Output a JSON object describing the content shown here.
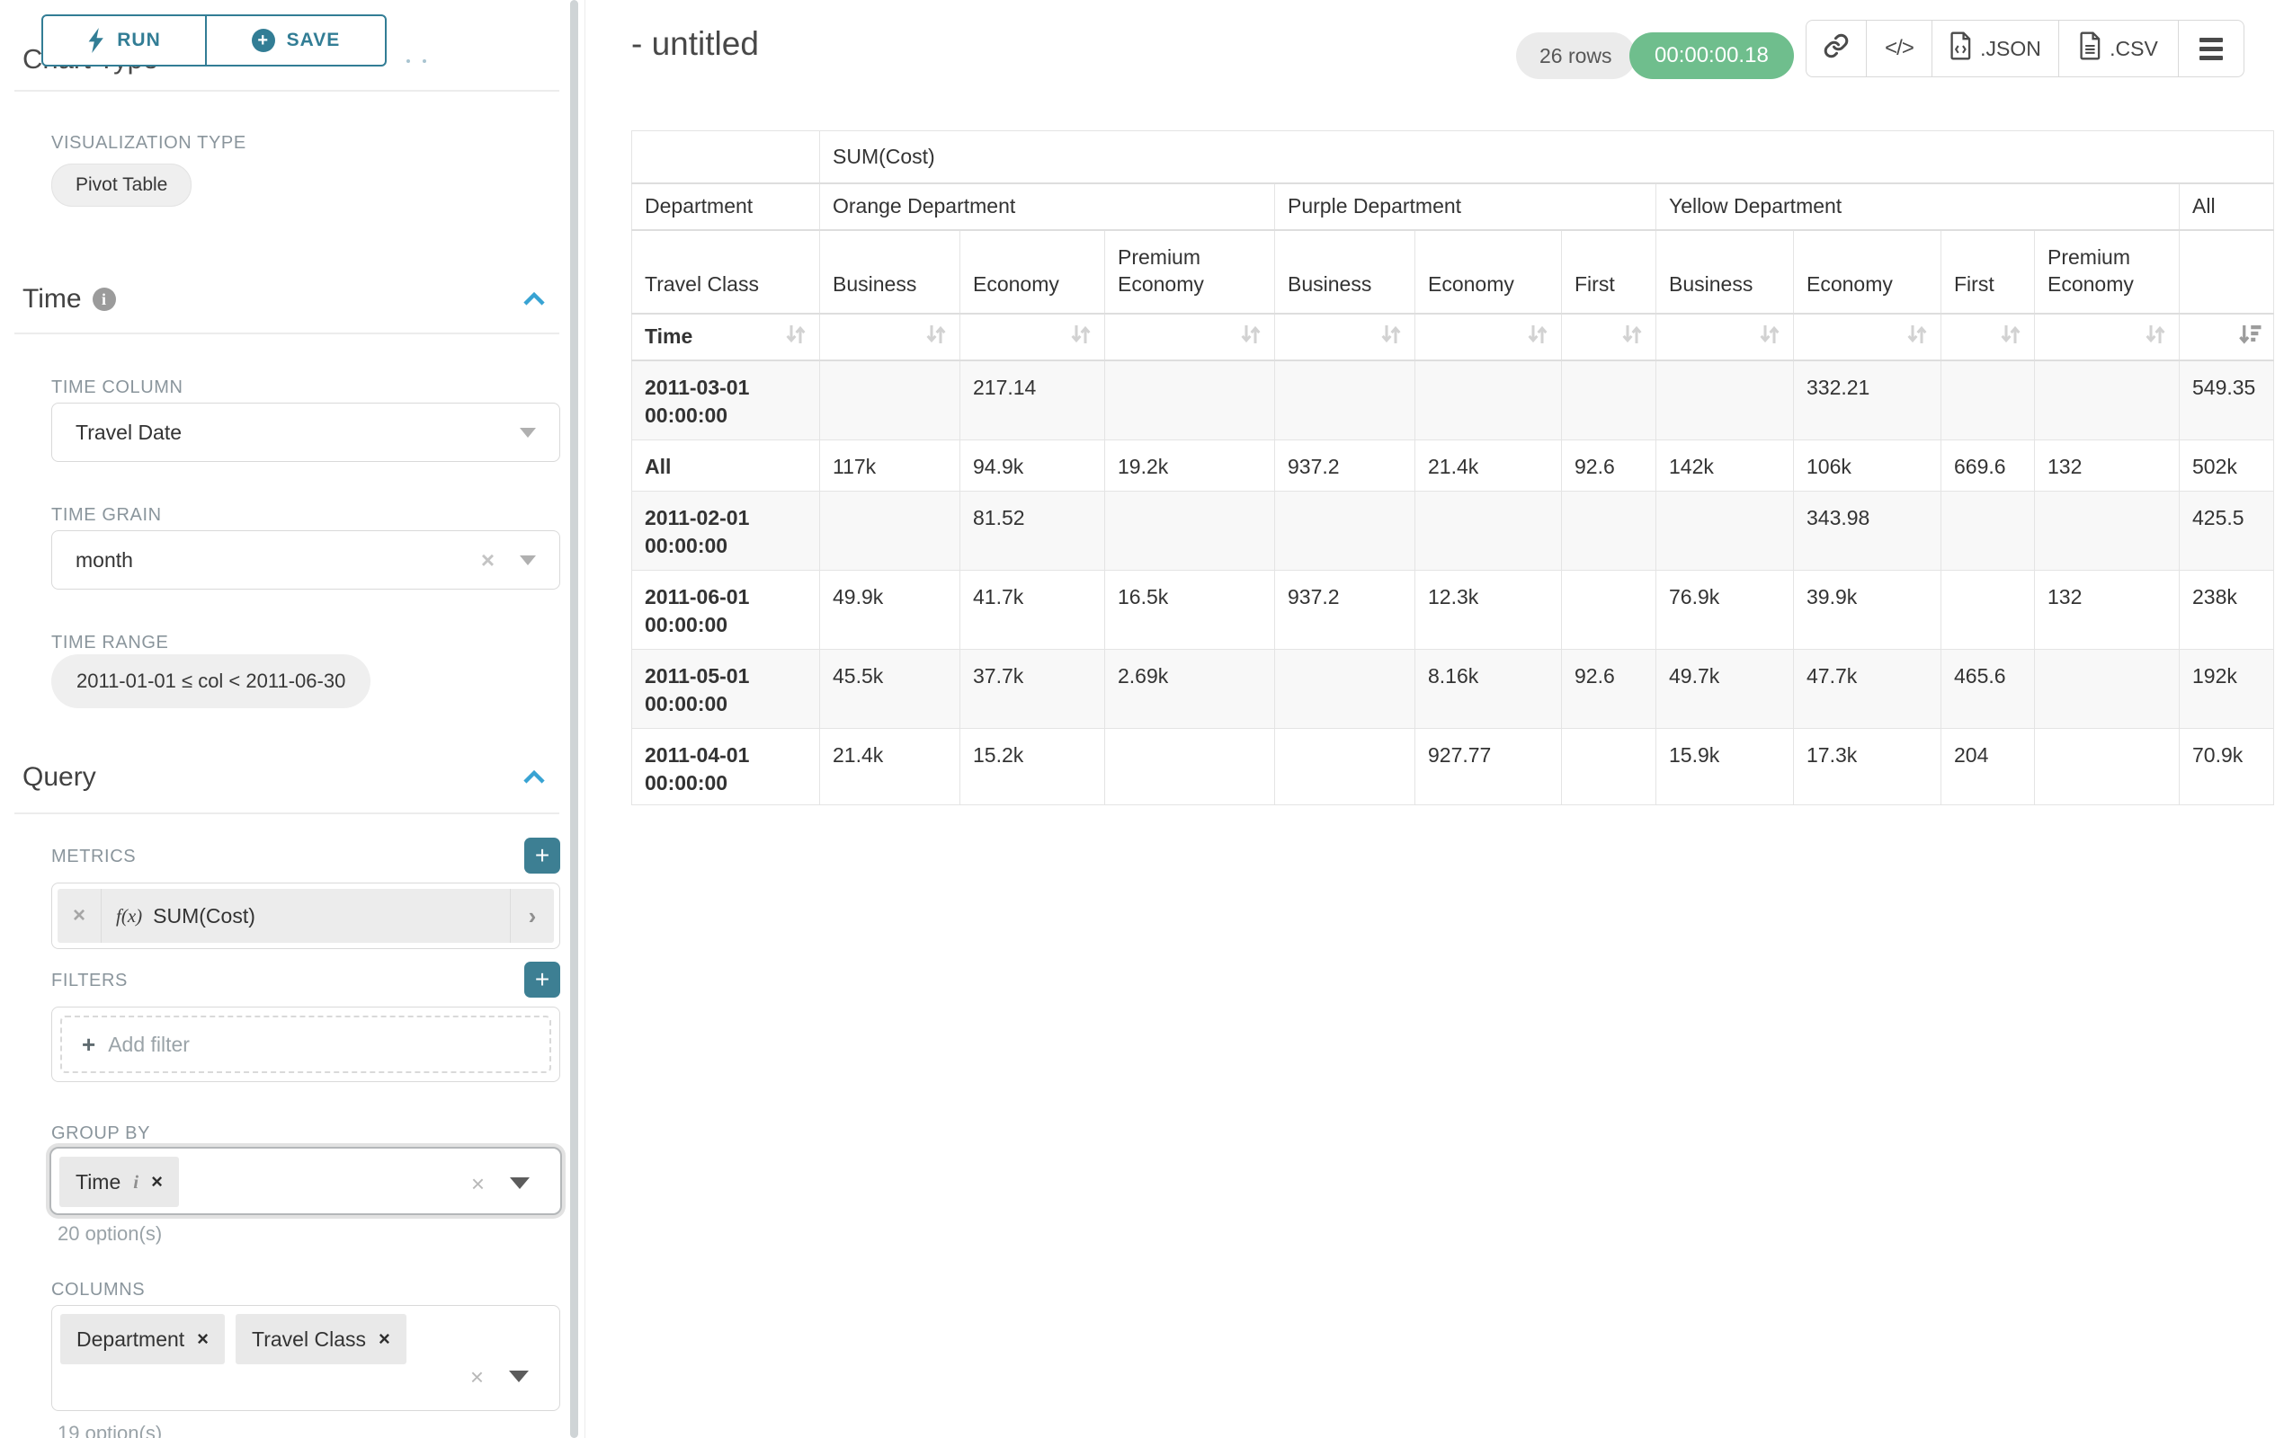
{
  "controls": {
    "run_label": "RUN",
    "save_label": "SAVE",
    "chart_type_heading": "Chart Type",
    "visualization_type_label": "VISUALIZATION TYPE",
    "visualization_type_value": "Pivot Table",
    "time": {
      "title": "Time",
      "time_column_label": "TIME COLUMN",
      "time_column_value": "Travel Date",
      "time_grain_label": "TIME GRAIN",
      "time_grain_value": "month",
      "time_range_label": "TIME RANGE",
      "time_range_value": "2011-01-01 ≤ col < 2011-06-30"
    },
    "query": {
      "title": "Query",
      "metrics_label": "METRICS",
      "metric_fn_icon": "f(x)",
      "metric_value": "SUM(Cost)",
      "filters_label": "FILTERS",
      "add_filter_label": "Add filter",
      "group_by_label": "GROUP BY",
      "group_by_chips": [
        "Time"
      ],
      "group_by_hint": "20 option(s)",
      "columns_label": "COLUMNS",
      "columns_chips": [
        "Department",
        "Travel Class"
      ],
      "columns_hint": "19 option(s)"
    }
  },
  "header": {
    "title": "- untitled",
    "rows_badge": "26 rows",
    "timer_badge": "00:00:00.18",
    "toolbar_buttons": [
      {
        "icon": "link-icon",
        "label": ""
      },
      {
        "icon": "code-icon",
        "label": ""
      },
      {
        "icon": "file-json-icon",
        "label": ".JSON"
      },
      {
        "icon": "file-csv-icon",
        "label": ".CSV"
      },
      {
        "icon": "menu-icon",
        "label": ""
      }
    ]
  },
  "pivot_table": {
    "metric_label": "SUM(Cost)",
    "column_dimension_label": "Department",
    "row_dimension_label": "Travel Class",
    "time_label": "Time",
    "column_groups": [
      {
        "label": "Orange Department",
        "columns": [
          "Business",
          "Economy",
          "Premium Economy"
        ]
      },
      {
        "label": "Purple Department",
        "columns": [
          "Business",
          "Economy",
          "First"
        ]
      },
      {
        "label": "Yellow Department",
        "columns": [
          "Business",
          "Economy",
          "First",
          "Premium Economy"
        ]
      },
      {
        "label": "All",
        "columns": [
          ""
        ]
      }
    ],
    "sort_state": {
      "sorted_column": "All",
      "direction": "desc"
    },
    "rows": [
      {
        "label": "2011-03-01 00:00:00",
        "values": [
          "",
          "217.14",
          "",
          "",
          "",
          "",
          "",
          "332.21",
          "",
          "",
          "549.35"
        ]
      },
      {
        "label": "All",
        "values": [
          "117k",
          "94.9k",
          "19.2k",
          "937.2",
          "21.4k",
          "92.6",
          "142k",
          "106k",
          "669.6",
          "132",
          "502k"
        ]
      },
      {
        "label": "2011-02-01 00:00:00",
        "values": [
          "",
          "81.52",
          "",
          "",
          "",
          "",
          "",
          "343.98",
          "",
          "",
          "425.5"
        ]
      },
      {
        "label": "2011-06-01 00:00:00",
        "values": [
          "49.9k",
          "41.7k",
          "16.5k",
          "937.2",
          "12.3k",
          "",
          "76.9k",
          "39.9k",
          "",
          "132",
          "238k"
        ]
      },
      {
        "label": "2011-05-01 00:00:00",
        "values": [
          "45.5k",
          "37.7k",
          "2.69k",
          "",
          "8.16k",
          "92.6",
          "49.7k",
          "47.7k",
          "465.6",
          "",
          "192k"
        ]
      },
      {
        "label": "2011-04-01 00:00:00",
        "values": [
          "21.4k",
          "15.2k",
          "",
          "",
          "927.77",
          "",
          "15.9k",
          "17.3k",
          "204",
          "",
          "70.9k"
        ]
      }
    ]
  }
}
